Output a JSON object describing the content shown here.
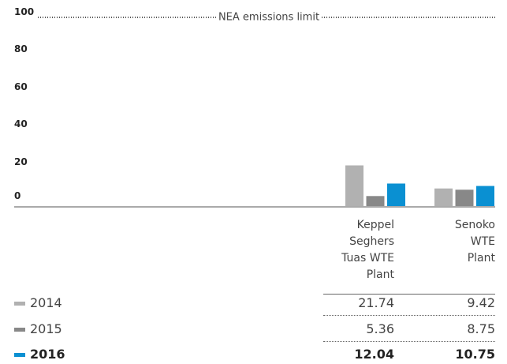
{
  "chart_data": {
    "type": "bar",
    "categories": [
      "Keppel Seghers Tuas WTE Plant",
      "Senoko WTE Plant"
    ],
    "series": [
      {
        "name": "2014",
        "color": "#b1b1b1",
        "values": [
          21.74,
          9.42
        ]
      },
      {
        "name": "2015",
        "color": "#888888",
        "values": [
          5.36,
          8.75
        ]
      },
      {
        "name": "2016",
        "color": "#0a90d2",
        "values": [
          12.04,
          10.75
        ]
      }
    ],
    "ylim": [
      0,
      100
    ],
    "yticks": [
      0,
      20,
      40,
      60,
      80,
      100
    ],
    "annotation": {
      "text": "NEA emissions limit",
      "value": 100
    }
  }
}
